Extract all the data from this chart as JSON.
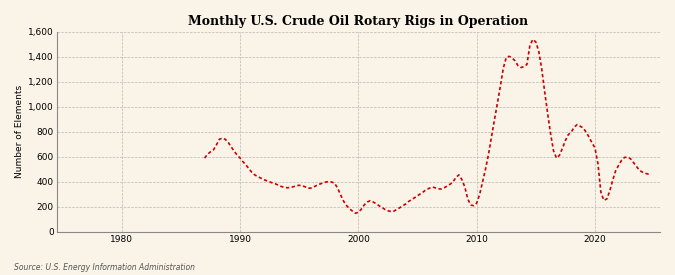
{
  "title": "Monthly U.S. Crude Oil Rotary Rigs in Operation",
  "ylabel": "Number of Elements",
  "source": "Source: U.S. Energy Information Administration",
  "bg_color": "#faf3e8",
  "line_color": "#cc0000",
  "grid_color": "#aaaaaa",
  "ylim": [
    0,
    1600
  ],
  "yticks": [
    0,
    200,
    400,
    600,
    800,
    1000,
    1200,
    1400,
    1600
  ],
  "ytick_labels": [
    "0",
    "200",
    "400",
    "600",
    "800",
    "1,000",
    "1,200",
    "1,400",
    "1,600"
  ],
  "xlim_start": 1974.5,
  "xlim_end": 2025.5,
  "xticks": [
    1980,
    1990,
    2000,
    2010,
    2020
  ],
  "series": [
    [
      1987.0,
      590
    ],
    [
      1987.25,
      620
    ],
    [
      1987.5,
      640
    ],
    [
      1987.75,
      655
    ],
    [
      1988.0,
      695
    ],
    [
      1988.25,
      740
    ],
    [
      1988.5,
      750
    ],
    [
      1988.75,
      740
    ],
    [
      1989.0,
      715
    ],
    [
      1989.25,
      680
    ],
    [
      1989.5,
      645
    ],
    [
      1989.75,
      615
    ],
    [
      1990.0,
      590
    ],
    [
      1990.25,
      560
    ],
    [
      1990.5,
      535
    ],
    [
      1990.75,
      505
    ],
    [
      1991.0,
      475
    ],
    [
      1991.25,
      455
    ],
    [
      1991.5,
      440
    ],
    [
      1991.75,
      430
    ],
    [
      1992.0,
      418
    ],
    [
      1992.25,
      408
    ],
    [
      1992.5,
      400
    ],
    [
      1992.75,
      390
    ],
    [
      1993.0,
      383
    ],
    [
      1993.25,
      372
    ],
    [
      1993.5,
      362
    ],
    [
      1993.75,
      355
    ],
    [
      1994.0,
      352
    ],
    [
      1994.25,
      355
    ],
    [
      1994.5,
      360
    ],
    [
      1994.75,
      368
    ],
    [
      1995.0,
      372
    ],
    [
      1995.25,
      368
    ],
    [
      1995.5,
      360
    ],
    [
      1995.75,
      348
    ],
    [
      1996.0,
      350
    ],
    [
      1996.25,
      360
    ],
    [
      1996.5,
      372
    ],
    [
      1996.75,
      382
    ],
    [
      1997.0,
      390
    ],
    [
      1997.25,
      398
    ],
    [
      1997.5,
      402
    ],
    [
      1997.75,
      398
    ],
    [
      1998.0,
      388
    ],
    [
      1998.25,
      348
    ],
    [
      1998.5,
      295
    ],
    [
      1998.75,
      245
    ],
    [
      1999.0,
      210
    ],
    [
      1999.25,
      185
    ],
    [
      1999.5,
      165
    ],
    [
      1999.75,
      148
    ],
    [
      2000.0,
      155
    ],
    [
      2000.25,
      180
    ],
    [
      2000.5,
      215
    ],
    [
      2000.75,
      238
    ],
    [
      2001.0,
      248
    ],
    [
      2001.25,
      238
    ],
    [
      2001.5,
      225
    ],
    [
      2001.75,
      208
    ],
    [
      2002.0,
      195
    ],
    [
      2002.25,
      178
    ],
    [
      2002.5,
      168
    ],
    [
      2002.75,
      162
    ],
    [
      2003.0,
      165
    ],
    [
      2003.25,
      178
    ],
    [
      2003.5,
      192
    ],
    [
      2003.75,
      208
    ],
    [
      2004.0,
      222
    ],
    [
      2004.25,
      242
    ],
    [
      2004.5,
      258
    ],
    [
      2004.75,
      272
    ],
    [
      2005.0,
      288
    ],
    [
      2005.25,
      305
    ],
    [
      2005.5,
      320
    ],
    [
      2005.75,
      338
    ],
    [
      2006.0,
      348
    ],
    [
      2006.25,
      358
    ],
    [
      2006.5,
      352
    ],
    [
      2006.75,
      344
    ],
    [
      2007.0,
      342
    ],
    [
      2007.25,
      352
    ],
    [
      2007.5,
      365
    ],
    [
      2007.75,
      380
    ],
    [
      2008.0,
      398
    ],
    [
      2008.25,
      435
    ],
    [
      2008.5,
      455
    ],
    [
      2008.75,
      418
    ],
    [
      2009.0,
      358
    ],
    [
      2009.25,
      262
    ],
    [
      2009.5,
      215
    ],
    [
      2009.75,
      208
    ],
    [
      2010.0,
      228
    ],
    [
      2010.25,
      298
    ],
    [
      2010.5,
      398
    ],
    [
      2010.75,
      502
    ],
    [
      2011.0,
      618
    ],
    [
      2011.25,
      758
    ],
    [
      2011.5,
      892
    ],
    [
      2011.75,
      1025
    ],
    [
      2012.0,
      1162
    ],
    [
      2012.25,
      1308
    ],
    [
      2012.5,
      1395
    ],
    [
      2012.75,
      1405
    ],
    [
      2013.0,
      1392
    ],
    [
      2013.25,
      1368
    ],
    [
      2013.5,
      1330
    ],
    [
      2013.75,
      1315
    ],
    [
      2014.0,
      1322
    ],
    [
      2014.25,
      1340
    ],
    [
      2014.5,
      1492
    ],
    [
      2014.75,
      1540
    ],
    [
      2015.0,
      1520
    ],
    [
      2015.25,
      1445
    ],
    [
      2015.5,
      1305
    ],
    [
      2015.75,
      1122
    ],
    [
      2016.0,
      948
    ],
    [
      2016.25,
      785
    ],
    [
      2016.5,
      648
    ],
    [
      2016.75,
      590
    ],
    [
      2017.0,
      612
    ],
    [
      2017.25,
      668
    ],
    [
      2017.5,
      730
    ],
    [
      2017.75,
      778
    ],
    [
      2018.0,
      798
    ],
    [
      2018.25,
      838
    ],
    [
      2018.5,
      858
    ],
    [
      2018.75,
      845
    ],
    [
      2019.0,
      832
    ],
    [
      2019.25,
      798
    ],
    [
      2019.5,
      758
    ],
    [
      2019.75,
      712
    ],
    [
      2020.0,
      672
    ],
    [
      2020.25,
      548
    ],
    [
      2020.5,
      318
    ],
    [
      2020.75,
      252
    ],
    [
      2021.0,
      262
    ],
    [
      2021.25,
      325
    ],
    [
      2021.5,
      412
    ],
    [
      2021.75,
      488
    ],
    [
      2022.0,
      532
    ],
    [
      2022.25,
      572
    ],
    [
      2022.5,
      595
    ],
    [
      2022.75,
      598
    ],
    [
      2023.0,
      585
    ],
    [
      2023.25,
      555
    ],
    [
      2023.5,
      525
    ],
    [
      2023.75,
      492
    ],
    [
      2024.0,
      478
    ],
    [
      2024.25,
      468
    ],
    [
      2024.5,
      462
    ],
    [
      2024.75,
      460
    ]
  ]
}
